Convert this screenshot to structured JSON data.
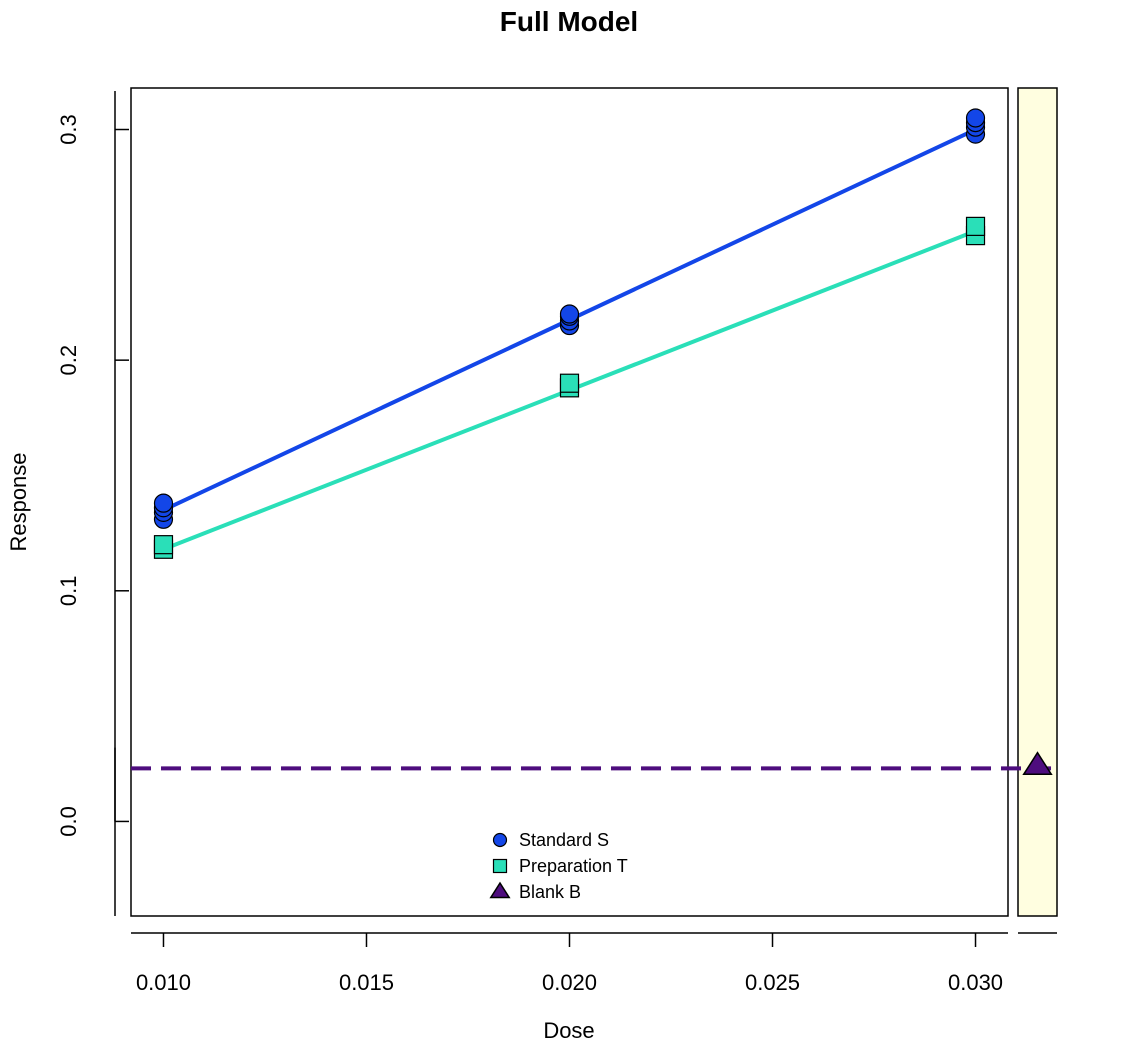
{
  "chart_data": {
    "type": "scatter",
    "title": "Full Model",
    "xlabel": "Dose",
    "ylabel": "Response",
    "xlim": [
      0.0092,
      0.0308
    ],
    "ylim": [
      -0.041,
      0.318
    ],
    "xticks": [
      0.01,
      0.015,
      0.02,
      0.025,
      0.03
    ],
    "xtick_labels": [
      "0.010",
      "0.015",
      "0.020",
      "0.025",
      "0.030"
    ],
    "yticks": [
      0.0,
      0.1,
      0.2,
      0.3
    ],
    "ytick_labels": [
      "0.0",
      "0.1",
      "0.2",
      "0.3"
    ],
    "legend_position": "bottom-center",
    "series": [
      {
        "name": "Standard S",
        "color": "#1346E8",
        "marker": "circle",
        "points": [
          [
            0.01,
            0.131
          ],
          [
            0.01,
            0.134
          ],
          [
            0.01,
            0.136
          ],
          [
            0.01,
            0.138
          ],
          [
            0.02,
            0.215
          ],
          [
            0.02,
            0.217
          ],
          [
            0.02,
            0.219
          ],
          [
            0.02,
            0.22
          ],
          [
            0.03,
            0.298
          ],
          [
            0.03,
            0.301
          ],
          [
            0.03,
            0.303
          ],
          [
            0.03,
            0.305
          ]
        ],
        "fit": [
          [
            0.01,
            0.135
          ],
          [
            0.03,
            0.3
          ]
        ]
      },
      {
        "name": "Preparation T",
        "color": "#2ADFB8",
        "marker": "square",
        "points": [
          [
            0.01,
            0.118
          ],
          [
            0.01,
            0.12
          ],
          [
            0.02,
            0.188
          ],
          [
            0.02,
            0.19
          ],
          [
            0.03,
            0.254
          ],
          [
            0.03,
            0.258
          ]
        ],
        "fit": [
          [
            0.01,
            0.118
          ],
          [
            0.03,
            0.256
          ]
        ]
      },
      {
        "name": "Blank B",
        "color": "#4E0D7E",
        "marker": "triangle",
        "points": [
          [
            null,
            0.024
          ]
        ],
        "hline": 0.023
      }
    ],
    "side_panel_fill": "#FFFEE0"
  }
}
